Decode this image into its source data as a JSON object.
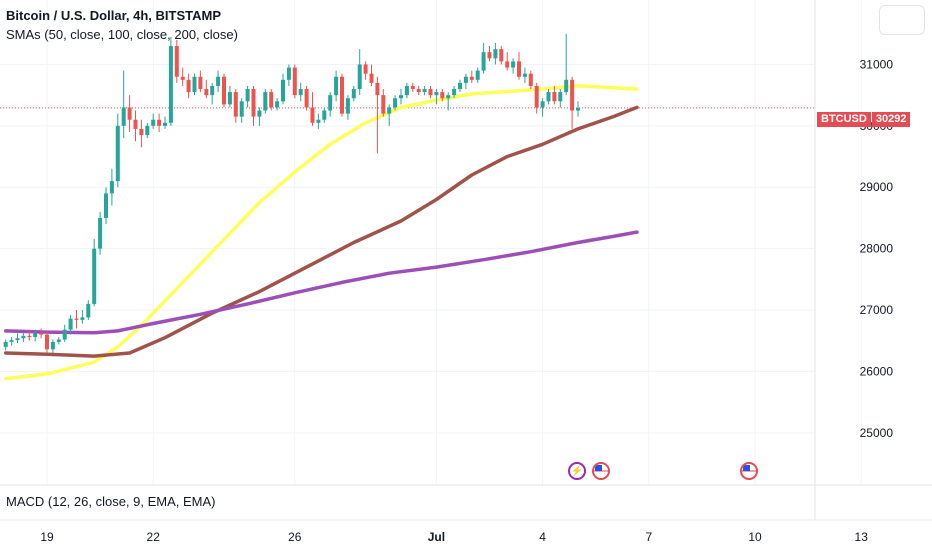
{
  "header": {
    "title": "Bitcoin / U.S. Dollar, 4h, BITSTAMP",
    "indicators": "SMAs (50, close, 100, close, 200, close)"
  },
  "macd_label": "MACD (12, 26, close, 9, EMA, EMA)",
  "price_tag": {
    "symbol": "BTCUSD",
    "price": "30292"
  },
  "events": [
    {
      "icon": "lightning-icon"
    },
    {
      "icon": "us-flag-icon"
    },
    {
      "icon": "us-flag-icon"
    }
  ],
  "colors": {
    "up": "#26a69a",
    "down": "#ef5350",
    "sma50": "#ffff5c",
    "sma100": "#a0534a",
    "sma200": "#9c4fb6",
    "price_tag": "#e54b53"
  },
  "chart_data": {
    "type": "candlestick",
    "title": "Bitcoin / U.S. Dollar, 4h, BITSTAMP",
    "y_axis": {
      "ticks": [
        25000,
        26000,
        27000,
        28000,
        29000,
        30000,
        31000
      ],
      "range": [
        24150,
        32050
      ],
      "side": "right"
    },
    "x_axis": {
      "tick_labels": [
        "19",
        "22",
        "26",
        "Jul",
        "4",
        "7",
        "10",
        "13"
      ],
      "tick_bar_index": [
        0,
        18,
        42,
        66,
        84,
        102,
        120,
        138
      ],
      "first_bar_index": -7,
      "bars_per_day": 6
    },
    "last_price": 30292,
    "grid": true,
    "candles": [
      [
        26400,
        26520,
        26340,
        26480
      ],
      [
        26480,
        26560,
        26420,
        26510
      ],
      [
        26510,
        26620,
        26460,
        26540
      ],
      [
        26540,
        26640,
        26480,
        26580
      ],
      [
        26580,
        26660,
        26500,
        26560
      ],
      [
        26560,
        26680,
        26490,
        26620
      ],
      [
        26620,
        26700,
        26540,
        26600
      ],
      [
        26600,
        26660,
        26300,
        26360
      ],
      [
        26360,
        26520,
        26300,
        26480
      ],
      [
        26480,
        26560,
        26440,
        26520
      ],
      [
        26520,
        26760,
        26480,
        26680
      ],
      [
        26680,
        26920,
        26600,
        26860
      ],
      [
        26860,
        27000,
        26700,
        26840
      ],
      [
        26840,
        27000,
        26780,
        26880
      ],
      [
        26880,
        27160,
        26840,
        27100
      ],
      [
        27100,
        28160,
        27060,
        28000
      ],
      [
        28000,
        28600,
        27900,
        28500
      ],
      [
        28500,
        29000,
        28400,
        28900
      ],
      [
        28900,
        29300,
        28700,
        29100
      ],
      [
        29100,
        30200,
        29000,
        30000
      ],
      [
        30000,
        30900,
        29800,
        30300
      ],
      [
        30300,
        30500,
        29900,
        30100
      ],
      [
        30100,
        30250,
        29750,
        29950
      ],
      [
        29950,
        30100,
        29650,
        29850
      ],
      [
        29850,
        30050,
        29800,
        30000
      ],
      [
        30000,
        30200,
        29950,
        30100
      ],
      [
        30100,
        30200,
        29900,
        30000
      ],
      [
        30000,
        30150,
        29950,
        30050
      ],
      [
        30050,
        31450,
        30000,
        31300
      ],
      [
        31300,
        31400,
        30700,
        30800
      ],
      [
        30800,
        30950,
        30650,
        30750
      ],
      [
        30750,
        30850,
        30450,
        30550
      ],
      [
        30550,
        30850,
        30500,
        30800
      ],
      [
        30800,
        30900,
        30550,
        30600
      ],
      [
        30600,
        30750,
        30450,
        30500
      ],
      [
        30500,
        30700,
        30350,
        30650
      ],
      [
        30650,
        30900,
        30550,
        30800
      ],
      [
        30800,
        30850,
        30300,
        30350
      ],
      [
        30350,
        30650,
        30300,
        30550
      ],
      [
        30550,
        30600,
        30050,
        30150
      ],
      [
        30150,
        30450,
        30050,
        30400
      ],
      [
        30400,
        30650,
        30300,
        30600
      ],
      [
        30600,
        30650,
        30000,
        30150
      ],
      [
        30150,
        30300,
        30000,
        30250
      ],
      [
        30250,
        30600,
        30200,
        30550
      ],
      [
        30550,
        30600,
        30250,
        30300
      ],
      [
        30300,
        30450,
        30250,
        30400
      ],
      [
        30400,
        30850,
        30350,
        30750
      ],
      [
        30750,
        31000,
        30650,
        30950
      ],
      [
        30950,
        31000,
        30450,
        30500
      ],
      [
        30500,
        30700,
        30400,
        30600
      ],
      [
        30600,
        30650,
        30250,
        30300
      ],
      [
        30300,
        30550,
        30000,
        30050
      ],
      [
        30050,
        30200,
        29950,
        30100
      ],
      [
        30100,
        30300,
        30050,
        30250
      ],
      [
        30250,
        30550,
        30150,
        30500
      ],
      [
        30500,
        30900,
        30400,
        30800
      ],
      [
        30800,
        30850,
        30150,
        30200
      ],
      [
        30200,
        30500,
        30100,
        30450
      ],
      [
        30450,
        30650,
        30400,
        30600
      ],
      [
        30600,
        31250,
        30500,
        31000
      ],
      [
        31000,
        31050,
        30750,
        30850
      ],
      [
        30850,
        31000,
        30650,
        30700
      ],
      [
        30700,
        30800,
        29550,
        30500
      ],
      [
        30500,
        30600,
        30150,
        30200
      ],
      [
        30200,
        30350,
        30000,
        30300
      ],
      [
        30300,
        30500,
        30250,
        30450
      ],
      [
        30450,
        30600,
        30350,
        30500
      ],
      [
        30500,
        30700,
        30450,
        30650
      ],
      [
        30650,
        30700,
        30550,
        30600
      ],
      [
        30600,
        30650,
        30500,
        30550
      ],
      [
        30550,
        30650,
        30500,
        30600
      ],
      [
        30600,
        30650,
        30450,
        30500
      ],
      [
        30500,
        30600,
        30350,
        30550
      ],
      [
        30550,
        30600,
        30400,
        30450
      ],
      [
        30450,
        30550,
        30250,
        30500
      ],
      [
        30500,
        30650,
        30450,
        30600
      ],
      [
        30600,
        30750,
        30550,
        30700
      ],
      [
        30700,
        30850,
        30600,
        30800
      ],
      [
        30800,
        30900,
        30700,
        30750
      ],
      [
        30750,
        30950,
        30700,
        30900
      ],
      [
        30900,
        31350,
        30850,
        31200
      ],
      [
        31200,
        31300,
        31050,
        31100
      ],
      [
        31100,
        31350,
        31000,
        31250
      ],
      [
        31250,
        31300,
        31000,
        31050
      ],
      [
        31050,
        31200,
        30900,
        30950
      ],
      [
        30950,
        31100,
        30850,
        31050
      ],
      [
        31050,
        31200,
        30750,
        30800
      ],
      [
        30800,
        30950,
        30700,
        30850
      ],
      [
        30850,
        30900,
        30600,
        30650
      ],
      [
        30650,
        30700,
        30200,
        30300
      ],
      [
        30300,
        30450,
        30150,
        30400
      ],
      [
        30400,
        30600,
        30350,
        30550
      ],
      [
        30550,
        30650,
        30350,
        30400
      ],
      [
        30400,
        30600,
        30300,
        30550
      ],
      [
        30550,
        31500,
        30500,
        30750
      ],
      [
        30750,
        30800,
        29950,
        30250
      ],
      [
        30250,
        30400,
        30150,
        30292
      ]
    ],
    "series": [
      {
        "name": "SMA 50",
        "color": "#ffff5c",
        "points": [
          [
            -7,
            25880
          ],
          [
            0,
            25960
          ],
          [
            8,
            26150
          ],
          [
            12,
            26400
          ],
          [
            16,
            26750
          ],
          [
            20,
            27150
          ],
          [
            24,
            27550
          ],
          [
            30,
            28150
          ],
          [
            36,
            28750
          ],
          [
            42,
            29250
          ],
          [
            48,
            29700
          ],
          [
            54,
            30050
          ],
          [
            60,
            30300
          ],
          [
            66,
            30420
          ],
          [
            72,
            30520
          ],
          [
            78,
            30560
          ],
          [
            84,
            30600
          ],
          [
            90,
            30650
          ],
          [
            96,
            30620
          ],
          [
            100,
            30600
          ]
        ]
      },
      {
        "name": "SMA 100",
        "color": "#a0534a",
        "points": [
          [
            -7,
            26300
          ],
          [
            0,
            26280
          ],
          [
            8,
            26250
          ],
          [
            14,
            26300
          ],
          [
            20,
            26550
          ],
          [
            28,
            26950
          ],
          [
            36,
            27300
          ],
          [
            44,
            27700
          ],
          [
            52,
            28100
          ],
          [
            60,
            28450
          ],
          [
            66,
            28800
          ],
          [
            72,
            29200
          ],
          [
            78,
            29500
          ],
          [
            84,
            29700
          ],
          [
            90,
            29950
          ],
          [
            96,
            30150
          ],
          [
            100,
            30300
          ]
        ]
      },
      {
        "name": "SMA 200",
        "color": "#9c4fb6",
        "points": [
          [
            -7,
            26660
          ],
          [
            0,
            26640
          ],
          [
            8,
            26630
          ],
          [
            12,
            26660
          ],
          [
            18,
            26780
          ],
          [
            26,
            26930
          ],
          [
            34,
            27100
          ],
          [
            42,
            27280
          ],
          [
            50,
            27450
          ],
          [
            58,
            27600
          ],
          [
            66,
            27700
          ],
          [
            74,
            27820
          ],
          [
            82,
            27950
          ],
          [
            90,
            28100
          ],
          [
            96,
            28200
          ],
          [
            100,
            28270
          ]
        ]
      }
    ]
  }
}
